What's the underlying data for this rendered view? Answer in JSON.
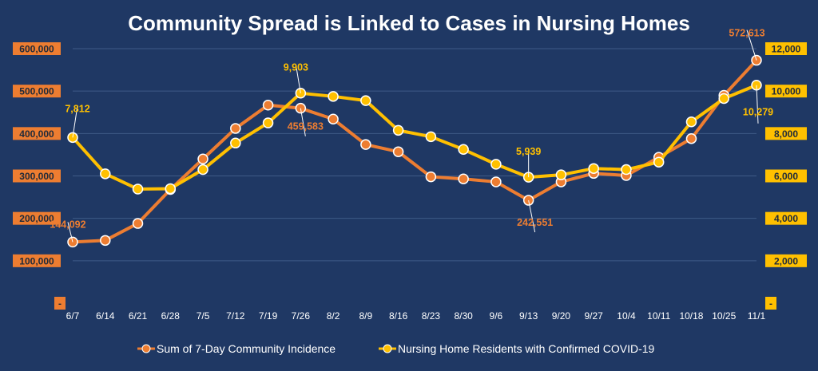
{
  "chart_data": {
    "type": "line",
    "title": "Community Spread is Linked to Cases in Nursing Homes",
    "categories": [
      "6/7",
      "6/14",
      "6/21",
      "6/28",
      "7/5",
      "7/12",
      "7/19",
      "7/26",
      "8/2",
      "8/9",
      "8/16",
      "8/23",
      "8/30",
      "9/6",
      "9/13",
      "9/20",
      "9/27",
      "10/4",
      "10/11",
      "10/18",
      "10/25",
      "11/1"
    ],
    "left_axis": {
      "ylim": [
        0,
        600000
      ],
      "ticks": [
        0,
        100000,
        200000,
        300000,
        400000,
        500000,
        600000
      ],
      "tick_labels": [
        "-",
        "100,000",
        "200,000",
        "300,000",
        "400,000",
        "500,000",
        "600,000"
      ]
    },
    "right_axis": {
      "ylim": [
        0,
        12000
      ],
      "ticks": [
        0,
        2000,
        4000,
        6000,
        8000,
        10000,
        12000
      ],
      "tick_labels": [
        "-",
        "2,000",
        "4,000",
        "6,000",
        "8,000",
        "10,000",
        "12,000"
      ]
    },
    "grid": true,
    "legend_position": "bottom",
    "series": [
      {
        "name": "Sum of 7-Day Community Incidence",
        "axis": "left",
        "color": "#ed7d31",
        "values": [
          144092,
          148000,
          188000,
          268000,
          340000,
          412000,
          467000,
          459583,
          434000,
          374000,
          357000,
          298000,
          293000,
          286000,
          242551,
          286000,
          306000,
          301000,
          344000,
          388000,
          490000,
          572613
        ],
        "data_labels": [
          {
            "index": 0,
            "text": "144,092"
          },
          {
            "index": 7,
            "text": "459,583"
          },
          {
            "index": 14,
            "text": "242,551"
          },
          {
            "index": 21,
            "text": "572,613"
          }
        ]
      },
      {
        "name": "Nursing Home Residents with Confirmed COVID-19",
        "axis": "right",
        "color": "#ffc000",
        "values": [
          7812,
          6100,
          5380,
          5400,
          6300,
          7550,
          8500,
          9903,
          9750,
          9550,
          8150,
          7850,
          7250,
          6550,
          5939,
          6050,
          6350,
          6300,
          6650,
          8550,
          9650,
          10279
        ],
        "data_labels": [
          {
            "index": 0,
            "text": "7,812"
          },
          {
            "index": 7,
            "text": "9,903"
          },
          {
            "index": 14,
            "text": "5,939"
          },
          {
            "index": 21,
            "text": "10,279"
          }
        ]
      }
    ]
  }
}
